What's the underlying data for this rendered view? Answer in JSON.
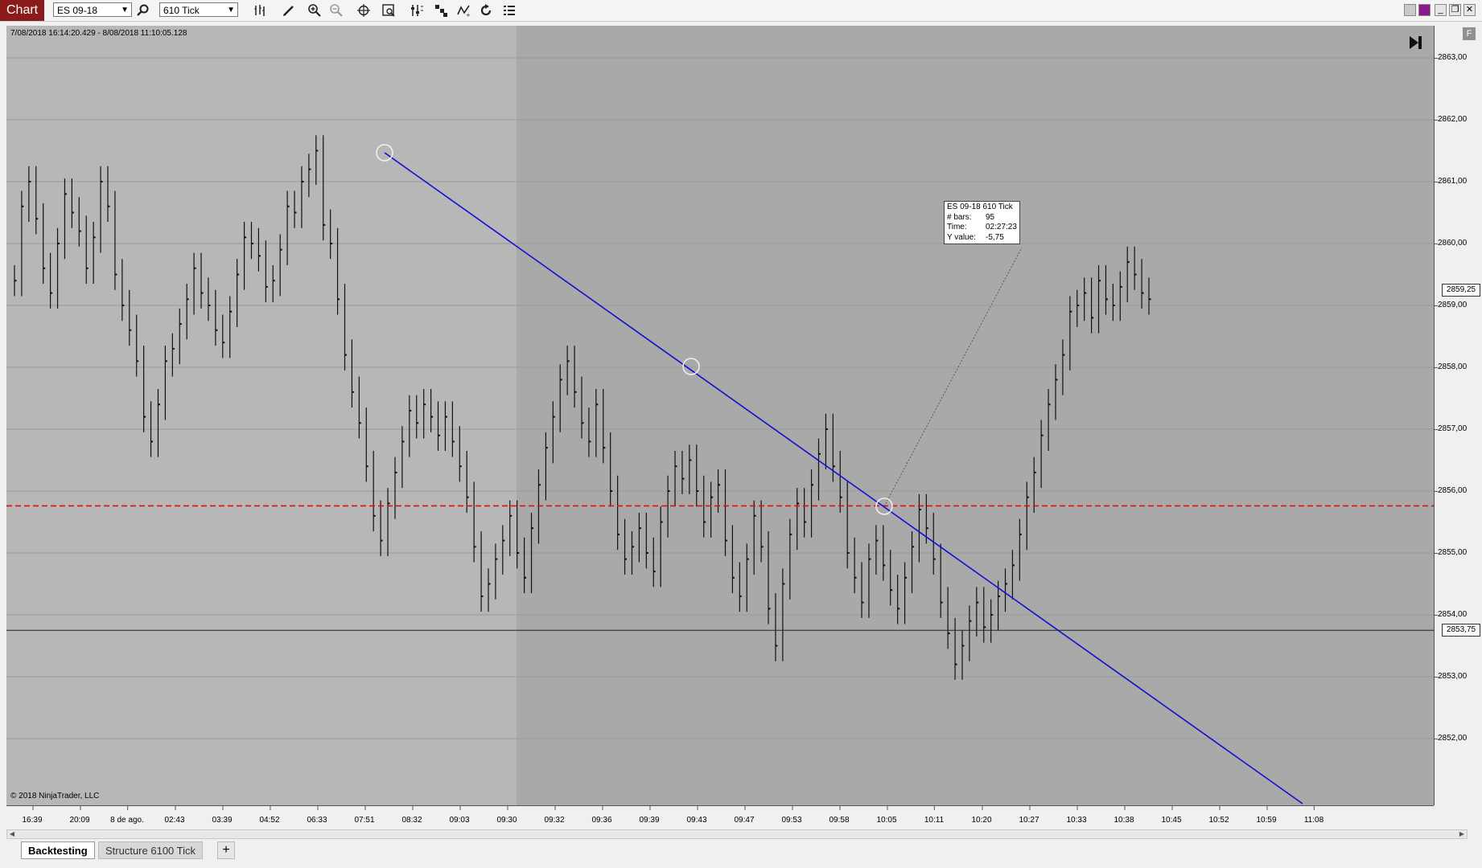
{
  "toolbar": {
    "chart_label": "Chart",
    "instrument": "ES 09-18",
    "interval": "610 Tick"
  },
  "chart": {
    "range_label": "7/08/2018 16:14:20.429 - 8/08/2018 11:10:05.128",
    "copyright": "© 2018 NinjaTrader, LLC",
    "f_label": "F",
    "y_ticks": [
      "2863,00",
      "2862,00",
      "2861,00",
      "2860,00",
      "2859,00",
      "2858,00",
      "2857,00",
      "2856,00",
      "2855,00",
      "2854,00",
      "2853,00",
      "2852,00"
    ],
    "x_ticks": [
      "16:39",
      "20:09",
      "8 de ago.",
      "02:43",
      "03:39",
      "04:52",
      "06:33",
      "07:51",
      "08:32",
      "09:03",
      "09:30",
      "09:32",
      "09:36",
      "09:39",
      "09:43",
      "09:47",
      "09:53",
      "09:58",
      "10:05",
      "10:11",
      "10:20",
      "10:27",
      "10:33",
      "10:38",
      "10:45",
      "10:52",
      "10:59",
      "11:08"
    ],
    "last_price": "2859,25",
    "horizontal_line_price": "2853,75",
    "colors": {
      "trend_line": "#1010d0",
      "dashed_line": "#e01010",
      "history_bg": "#b7b7b7",
      "chart_bg": "#a9a9a9"
    }
  },
  "tooltip": {
    "title": "ES 09-18 610 Tick",
    "bars_label": "# bars:",
    "bars_value": "95",
    "time_label": "Time:",
    "time_value": "02:27:23",
    "y_label": "Y value:",
    "y_value": "-5,75"
  },
  "tabs": [
    {
      "label": "Backtesting"
    },
    {
      "label": "Structure 6100 Tick"
    }
  ],
  "tab_add_label": "+"
}
